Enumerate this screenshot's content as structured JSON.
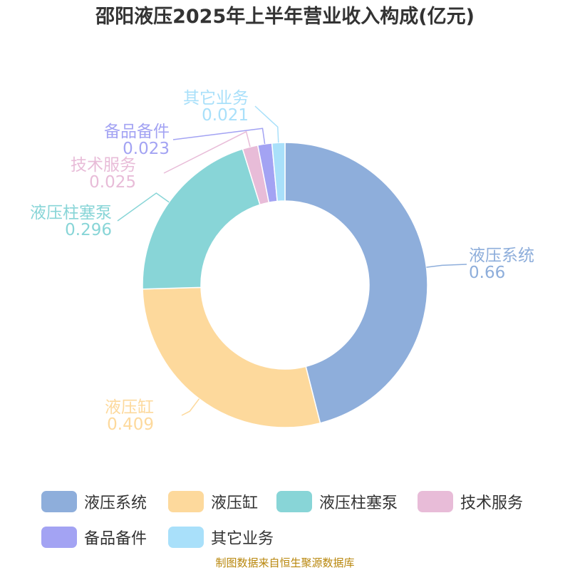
{
  "chart_data": {
    "type": "pie",
    "variant": "donut",
    "title": "邵阳液压2025年上半年营业收入构成(亿元)",
    "slices": [
      {
        "label": "液压系统",
        "value": 0.66,
        "value_text": "0.66",
        "color": "#8eaedb"
      },
      {
        "label": "液压缸",
        "value": 0.409,
        "value_text": "0.409",
        "color": "#fdd99c"
      },
      {
        "label": "液压柱塞泵",
        "value": 0.296,
        "value_text": "0.296",
        "color": "#88d5d7"
      },
      {
        "label": "技术服务",
        "value": 0.025,
        "value_text": "0.025",
        "color": "#e8bcd8"
      },
      {
        "label": "备品备件",
        "value": 0.023,
        "value_text": "0.023",
        "color": "#a3a3f3"
      },
      {
        "label": "其它业务",
        "value": 0.021,
        "value_text": "0.021",
        "color": "#a9e0fa"
      }
    ],
    "legend_position": "bottom"
  },
  "source_note": "制图数据来自恒生聚源数据库"
}
